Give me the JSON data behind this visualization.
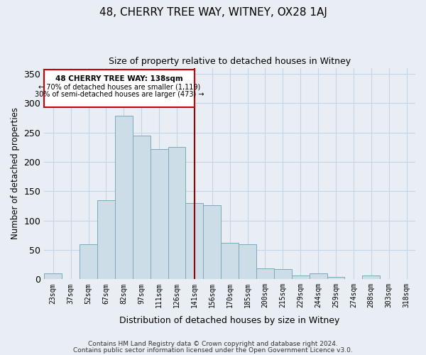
{
  "title1": "48, CHERRY TREE WAY, WITNEY, OX28 1AJ",
  "title2": "Size of property relative to detached houses in Witney",
  "xlabel": "Distribution of detached houses by size in Witney",
  "ylabel": "Number of detached properties",
  "footer1": "Contains HM Land Registry data © Crown copyright and database right 2024.",
  "footer2": "Contains public sector information licensed under the Open Government Licence v3.0.",
  "categories": [
    "23sqm",
    "37sqm",
    "52sqm",
    "67sqm",
    "82sqm",
    "97sqm",
    "111sqm",
    "126sqm",
    "141sqm",
    "156sqm",
    "170sqm",
    "185sqm",
    "200sqm",
    "215sqm",
    "229sqm",
    "244sqm",
    "259sqm",
    "274sqm",
    "288sqm",
    "303sqm",
    "318sqm"
  ],
  "values": [
    10,
    0,
    60,
    135,
    278,
    244,
    222,
    225,
    130,
    126,
    62,
    60,
    19,
    17,
    6,
    10,
    4,
    0,
    6,
    0,
    0
  ],
  "bar_color": "#ccdde8",
  "bar_edge_color": "#7aaabb",
  "vline_index": 8,
  "vline_color": "#990000",
  "annotation_title": "48 CHERRY TREE WAY: 138sqm",
  "annotation_line1": "← 70% of detached houses are smaller (1,119)",
  "annotation_line2": "30% of semi-detached houses are larger (473) →",
  "box_edge_color": "#cc0000",
  "ylim": [
    0,
    360
  ],
  "yticks": [
    0,
    50,
    100,
    150,
    200,
    250,
    300,
    350
  ],
  "bg_color": "#e8eef4",
  "plot_bg_color": "#e8eef4",
  "grid_color": "#c5d5e5",
  "title1_fontsize": 11,
  "title2_fontsize": 9
}
